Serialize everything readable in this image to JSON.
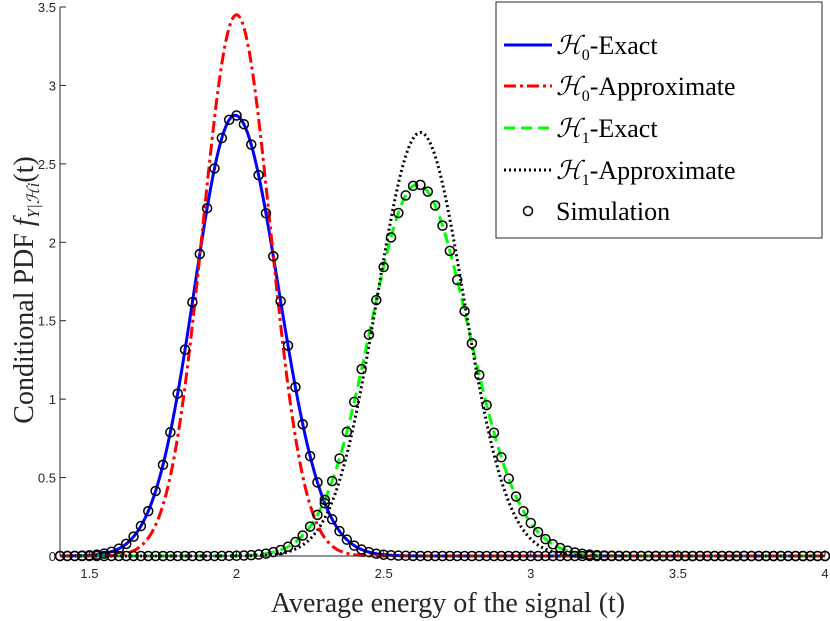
{
  "chart_data": {
    "type": "line",
    "xlabel": "Average energy of the signal (t)",
    "ylabel": "Conditional PDF f_{Y|H_i}(t)",
    "ylabel_prefix": "Conditional PDF",
    "xlim": [
      1.4,
      4.0
    ],
    "ylim": [
      0,
      3.5
    ],
    "x_ticks": [
      1.5,
      2,
      2.5,
      3,
      3.5,
      4
    ],
    "x_tick_labels": [
      "1.5",
      "2",
      "2.5",
      "3",
      "3.5",
      "4"
    ],
    "y_ticks": [
      0,
      0.5,
      1,
      1.5,
      2,
      2.5,
      3,
      3.5
    ],
    "y_tick_labels": [
      "0",
      "0.5",
      "1",
      "1.5",
      "2",
      "2.5",
      "3",
      "3.5"
    ],
    "grid": false,
    "legend_position": "top-right",
    "series": [
      {
        "name": "H0-Exact",
        "legend_label": "ℋ0-Exact",
        "model": {
          "kind": "gamma-like",
          "mode": 1.995,
          "peak": 2.81,
          "sigma_left": 0.138,
          "sigma_right": 0.148
        },
        "color": "#0000ff",
        "style": "solid"
      },
      {
        "name": "H0-Approximate",
        "legend_label": "ℋ0-Approximate",
        "model": {
          "kind": "gaussian",
          "mean": 2.0,
          "peak": 3.45,
          "sigma": 0.115
        },
        "color": "#ff0000",
        "style": "dashdot"
      },
      {
        "name": "H1-Exact",
        "legend_label": "ℋ1-Exact",
        "model": {
          "kind": "gamma-like",
          "mode": 2.615,
          "peak": 2.37,
          "sigma_left": 0.162,
          "sigma_right": 0.175
        },
        "color": "#00ff00",
        "style": "dashed"
      },
      {
        "name": "H1-Approximate",
        "legend_label": "ℋ1-Approximate",
        "model": {
          "kind": "gaussian",
          "mean": 2.625,
          "peak": 2.7,
          "sigma": 0.148
        },
        "color": "#000000",
        "style": "dotted"
      },
      {
        "name": "Simulation",
        "legend_label": "Simulation",
        "marker": "circle",
        "color": "#000000",
        "follows": [
          "H0-Exact",
          "H1-Exact"
        ],
        "x_start": 1.4,
        "x_step": 0.025,
        "x_end": 4.0
      }
    ]
  },
  "legend": {
    "items": [
      {
        "script": "ℋ",
        "sub": "0",
        "rest": "-Exact"
      },
      {
        "script": "ℋ",
        "sub": "0",
        "rest": "-Approximate"
      },
      {
        "script": "ℋ",
        "sub": "1",
        "rest": "-Exact"
      },
      {
        "script": "ℋ",
        "sub": "1",
        "rest": "-Approximate"
      },
      {
        "script": "",
        "sub": "",
        "rest": "Simulation"
      }
    ]
  },
  "ylabel_parts": {
    "prefix": "Conditional PDF ",
    "f": "f",
    "sub": "Y|ℋi",
    "suffix": "(t)"
  },
  "xlabel_text": "Average energy of the signal (t)"
}
